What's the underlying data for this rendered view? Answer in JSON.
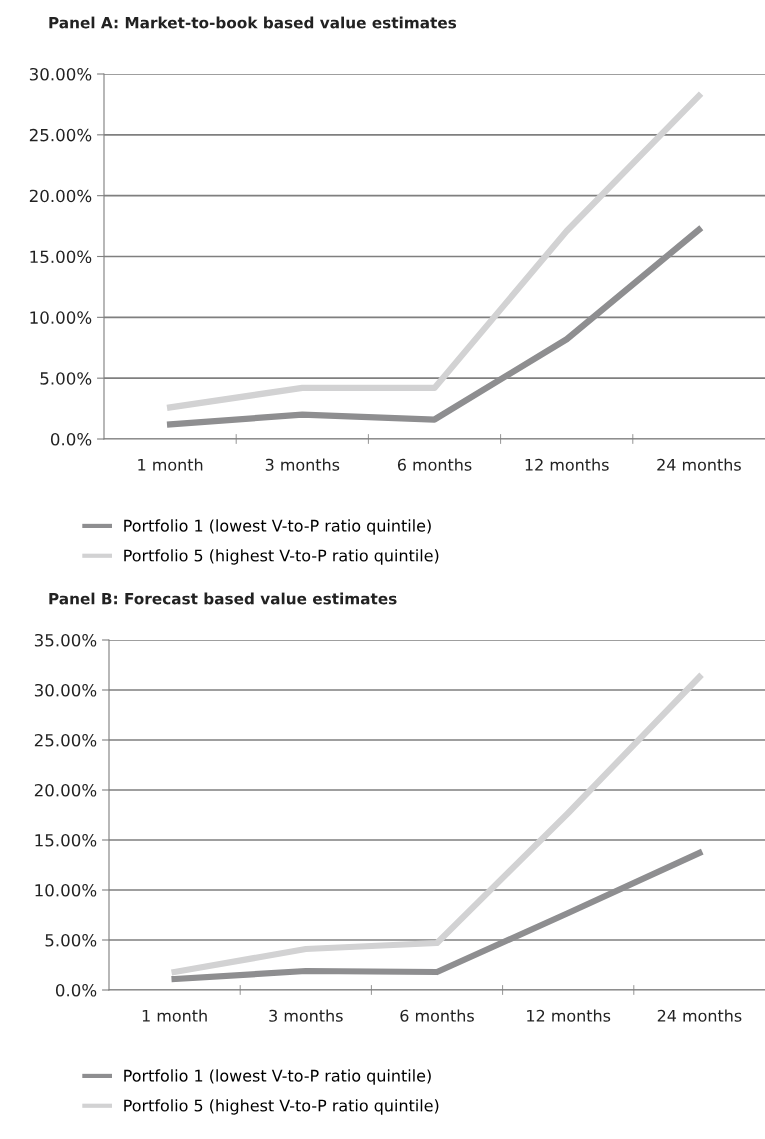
{
  "chart_data": [
    {
      "type": "line",
      "title": "Panel A: Market-to-book based value estimates",
      "categories": [
        "1 month",
        "3 months",
        "6 months",
        "12 months",
        "24 months"
      ],
      "series": [
        {
          "name": "Portfolio 1 (lowest V-to-P ratio quintile)",
          "color": "#8e8e90",
          "values": [
            1.2,
            2.0,
            1.6,
            8.2,
            17.2
          ]
        },
        {
          "name": "Portfolio 5 (highest V-to-P ratio quintile)",
          "color": "#d2d2d3",
          "values": [
            2.6,
            4.2,
            4.2,
            17.1,
            28.2
          ]
        }
      ],
      "ylim": [
        0,
        30
      ],
      "yticks": [
        {
          "value": 0,
          "label": "0.0%"
        },
        {
          "value": 5,
          "label": "5.00%"
        },
        {
          "value": 10,
          "label": "10.00%"
        },
        {
          "value": 15,
          "label": "15.00%"
        },
        {
          "value": 20,
          "label": "20.00%"
        },
        {
          "value": 25,
          "label": "25.00%"
        },
        {
          "value": 30,
          "label": "30.00%"
        }
      ],
      "grid": "y",
      "legend": "bottom",
      "marker": "none",
      "line_style": "solid"
    },
    {
      "type": "line",
      "title": "Panel B: Forecast based value estimates",
      "categories": [
        "1 month",
        "3 months",
        "6 months",
        "12 months",
        "24 months"
      ],
      "series": [
        {
          "name": "Portfolio 1 (lowest V-to-P ratio quintile)",
          "color": "#8e8e90",
          "values": [
            1.1,
            1.9,
            1.8,
            7.7,
            13.7
          ]
        },
        {
          "name": "Portfolio 5 (highest V-to-P ratio quintile)",
          "color": "#d2d2d3",
          "values": [
            1.8,
            4.1,
            4.7,
            17.7,
            31.3
          ]
        }
      ],
      "ylim": [
        0,
        35
      ],
      "yticks": [
        {
          "value": 0,
          "label": "0.0%"
        },
        {
          "value": 5,
          "label": "5.00%"
        },
        {
          "value": 10,
          "label": "10.00%"
        },
        {
          "value": 15,
          "label": "15.00%"
        },
        {
          "value": 20,
          "label": "20.00%"
        },
        {
          "value": 25,
          "label": "25.00%"
        },
        {
          "value": 30,
          "label": "30.00%"
        },
        {
          "value": 35,
          "label": "35.00%"
        }
      ],
      "grid": "y",
      "legend": "bottom",
      "marker": "none",
      "line_style": "solid"
    }
  ]
}
